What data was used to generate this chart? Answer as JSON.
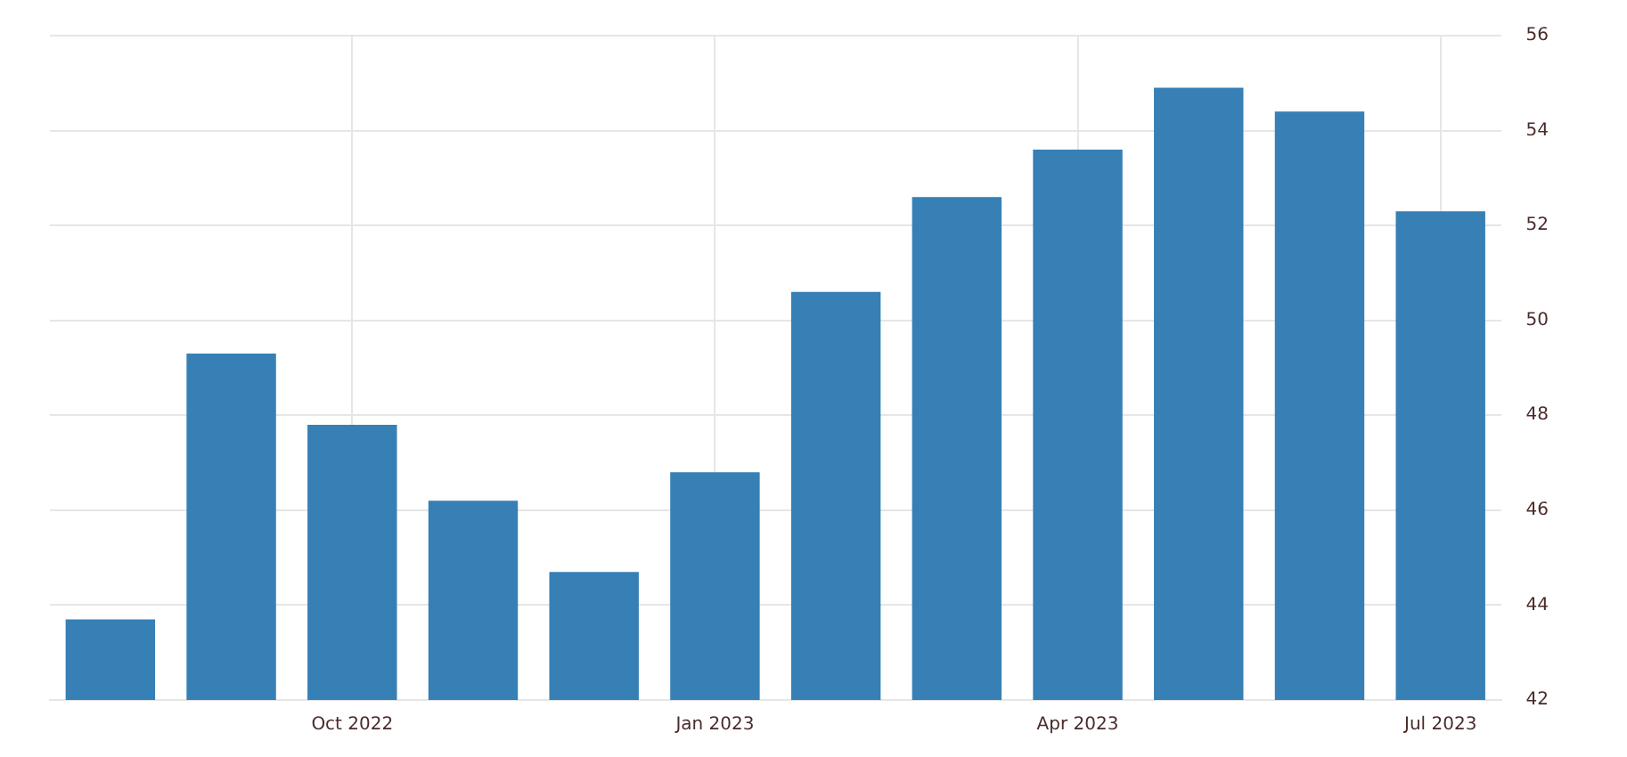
{
  "chart_data": {
    "type": "bar",
    "categories": [
      null,
      null,
      "Oct 2022",
      null,
      null,
      "Jan 2023",
      null,
      null,
      "Apr 2023",
      null,
      null,
      "Jul 2023"
    ],
    "values": [
      43.7,
      49.3,
      47.8,
      46.2,
      44.7,
      46.8,
      50.6,
      52.6,
      53.6,
      54.9,
      54.4,
      52.3
    ],
    "color": "#3680b6",
    "ylim": [
      42,
      56
    ],
    "yticks": [
      42,
      44,
      46,
      48,
      50,
      52,
      54,
      56
    ],
    "grid": true
  }
}
